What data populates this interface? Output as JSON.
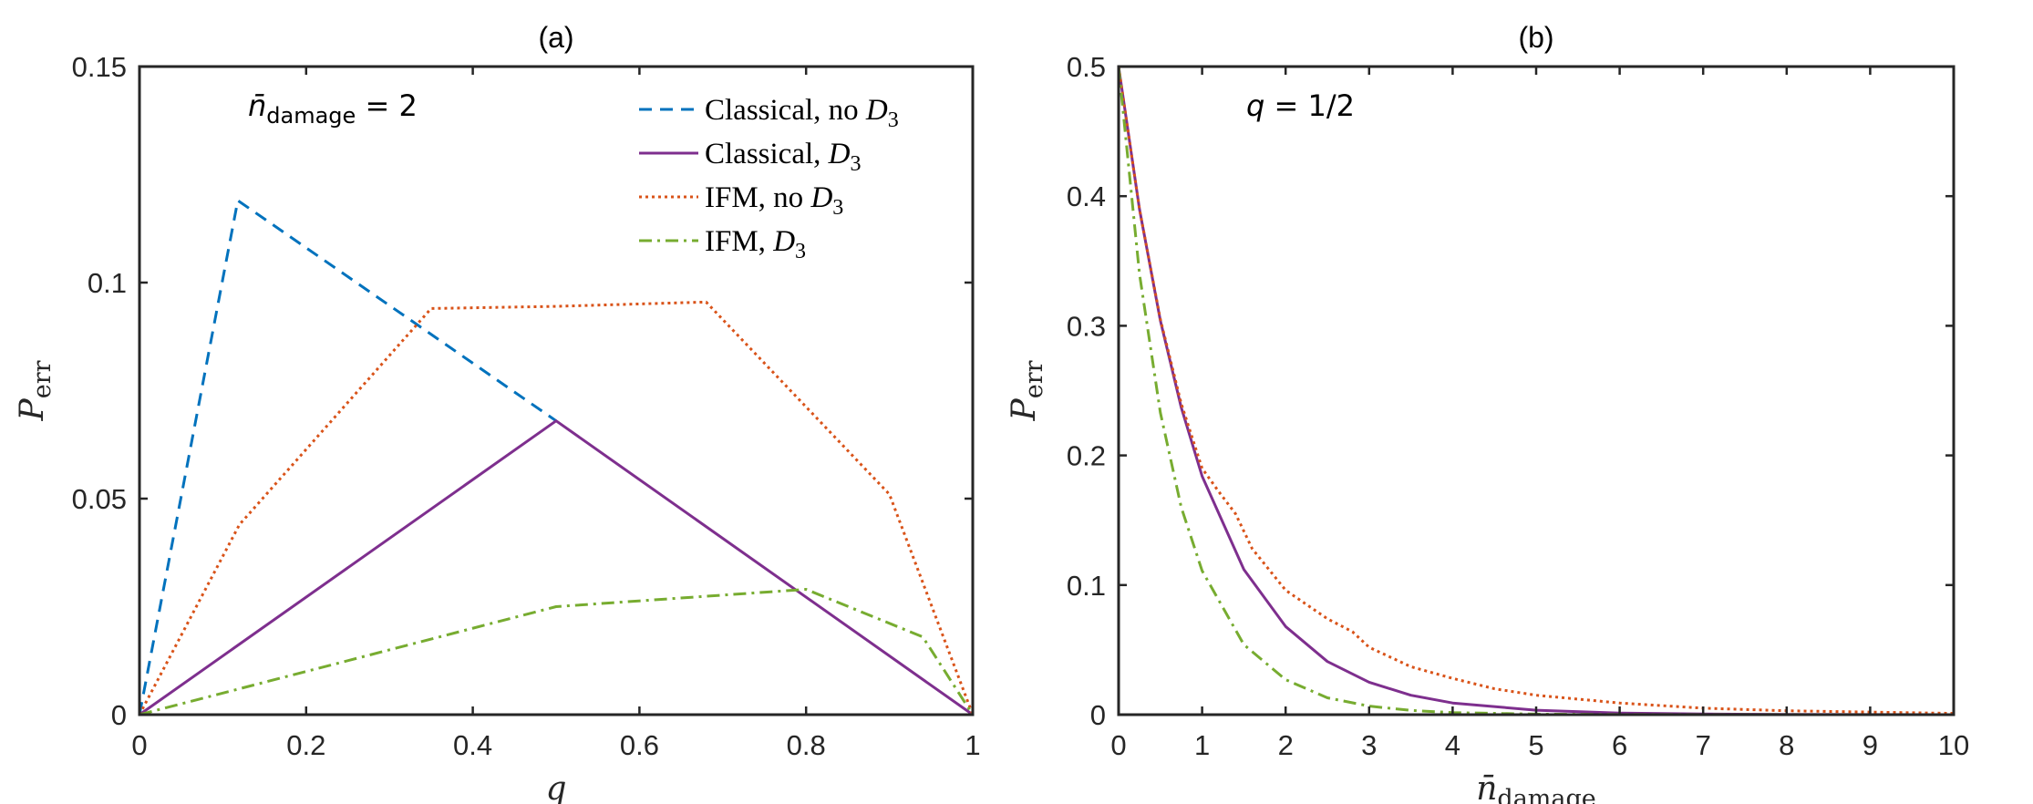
{
  "colors": {
    "classical_no_d3": "#0072BD",
    "classical_d3": "#7E2F8E",
    "ifm_no_d3": "#D95319",
    "ifm_d3": "#77AC30",
    "axes": "#262626"
  },
  "chart_data": [
    {
      "type": "line",
      "title": "(a)",
      "xlabel": "q",
      "ylabel_base": "P",
      "ylabel_sub": "err",
      "xlim": [
        0,
        1
      ],
      "ylim": [
        0,
        0.15
      ],
      "xticks": [
        0,
        0.2,
        0.4,
        0.6,
        0.8,
        1
      ],
      "xtick_labels": [
        "0",
        "0.2",
        "0.4",
        "0.6",
        "0.8",
        "1"
      ],
      "yticks": [
        0,
        0.05,
        0.1,
        0.15
      ],
      "ytick_labels": [
        "0",
        "0.05",
        "0.1",
        "0.15"
      ],
      "annotation": {
        "base": "n̄",
        "sub": "damage",
        "rest": " = 2"
      },
      "legend_position": "top-right",
      "series": [
        {
          "name": "Classical, no D3",
          "label_text": "Classical, no ",
          "label_math": "D",
          "label_sub": "3",
          "color_key": "classical_no_d3",
          "dash": "dashed",
          "points": [
            [
              0,
              0
            ],
            [
              0.118,
              0.119
            ],
            [
              0.5,
              0.068
            ]
          ]
        },
        {
          "name": "Classical, D3",
          "label_text": "Classical, ",
          "label_math": "D",
          "label_sub": "3",
          "color_key": "classical_d3",
          "dash": "solid",
          "points": [
            [
              0,
              0
            ],
            [
              0.5,
              0.068
            ],
            [
              1,
              0
            ]
          ]
        },
        {
          "name": "IFM, no D3",
          "label_text": "IFM, no ",
          "label_math": "D",
          "label_sub": "3",
          "color_key": "ifm_no_d3",
          "dash": "dotted",
          "points": [
            [
              0,
              0
            ],
            [
              0.12,
              0.044
            ],
            [
              0.35,
              0.094
            ],
            [
              0.5,
              0.0945
            ],
            [
              0.68,
              0.0955
            ],
            [
              0.9,
              0.051
            ],
            [
              1,
              0
            ]
          ]
        },
        {
          "name": "IFM, D3",
          "label_text": "IFM, ",
          "label_math": "D",
          "label_sub": "3",
          "color_key": "ifm_d3",
          "dash": "dashdot",
          "points": [
            [
              0,
              0
            ],
            [
              0.5,
              0.025
            ],
            [
              0.8,
              0.029
            ],
            [
              0.94,
              0.018
            ],
            [
              1,
              0
            ]
          ]
        }
      ]
    },
    {
      "type": "line",
      "title": "(b)",
      "xlabel_base": "n̄",
      "xlabel_sub": "damage",
      "ylabel_base": "P",
      "ylabel_sub": "err",
      "xlim": [
        0,
        10
      ],
      "ylim": [
        0,
        0.5
      ],
      "xticks": [
        0,
        1,
        2,
        3,
        4,
        5,
        6,
        7,
        8,
        9,
        10
      ],
      "xtick_labels": [
        "0",
        "1",
        "2",
        "3",
        "4",
        "5",
        "6",
        "7",
        "8",
        "9",
        "10"
      ],
      "yticks": [
        0,
        0.1,
        0.2,
        0.3,
        0.4,
        0.5
      ],
      "ytick_labels": [
        "0",
        "0.1",
        "0.2",
        "0.3",
        "0.4",
        "0.5"
      ],
      "annotation": {
        "base": "q",
        "sub": "",
        "rest": " = 1/2"
      },
      "series": [
        {
          "name": "Classical, D3",
          "color_key": "classical_d3",
          "dash": "solid",
          "points": [
            [
              0,
              0.5
            ],
            [
              0.25,
              0.39
            ],
            [
              0.5,
              0.304
            ],
            [
              0.75,
              0.237
            ],
            [
              1,
              0.184
            ],
            [
              1.5,
              0.112
            ],
            [
              2,
              0.068
            ],
            [
              2.5,
              0.041
            ],
            [
              3,
              0.025
            ],
            [
              3.5,
              0.015
            ],
            [
              4,
              0.009
            ],
            [
              5,
              0.0034
            ],
            [
              6,
              0.0012
            ],
            [
              7,
              0.0005
            ],
            [
              8,
              0.0002
            ],
            [
              10,
              0.0
            ]
          ]
        },
        {
          "name": "IFM, no D3",
          "color_key": "ifm_no_d3",
          "dash": "dotted",
          "points": [
            [
              0,
              0.5
            ],
            [
              0.25,
              0.39
            ],
            [
              0.5,
              0.305
            ],
            [
              0.75,
              0.24
            ],
            [
              1,
              0.19
            ],
            [
              1.2,
              0.172
            ],
            [
              1.4,
              0.155
            ],
            [
              1.6,
              0.128
            ],
            [
              2,
              0.096
            ],
            [
              2.5,
              0.074
            ],
            [
              2.8,
              0.064
            ],
            [
              3,
              0.052
            ],
            [
              3.5,
              0.037
            ],
            [
              4,
              0.028
            ],
            [
              4.5,
              0.02
            ],
            [
              5,
              0.015
            ],
            [
              6,
              0.009
            ],
            [
              7,
              0.005
            ],
            [
              8,
              0.003
            ],
            [
              9,
              0.002
            ],
            [
              10,
              0.001
            ]
          ]
        },
        {
          "name": "IFM, D3",
          "color_key": "ifm_d3",
          "dash": "dashdot",
          "points": [
            [
              0,
              0.5
            ],
            [
              0.25,
              0.34
            ],
            [
              0.5,
              0.233
            ],
            [
              0.75,
              0.16
            ],
            [
              1,
              0.111
            ],
            [
              1.5,
              0.054
            ],
            [
              2,
              0.027
            ],
            [
              2.5,
              0.013
            ],
            [
              3,
              0.0066
            ],
            [
              3.5,
              0.0033
            ],
            [
              4,
              0.0016
            ],
            [
              5,
              0.0004
            ],
            [
              6,
              0.0001
            ],
            [
              10,
              0.0
            ]
          ]
        }
      ]
    }
  ]
}
